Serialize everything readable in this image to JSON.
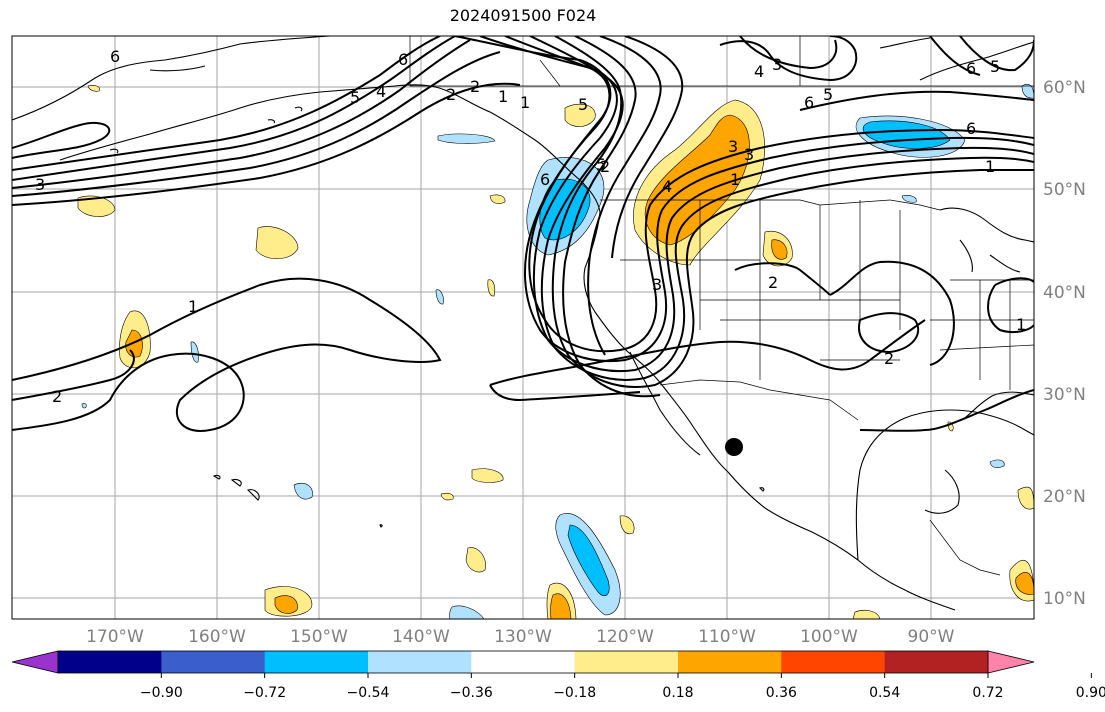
{
  "title": "2024091500 F024",
  "map": {
    "lat_labels": [
      "60°N",
      "50°N",
      "40°N",
      "30°N",
      "20°N",
      "10°N"
    ],
    "lon_labels": [
      "170°W",
      "160°W",
      "150°W",
      "140°W",
      "130°W",
      "120°W",
      "110°W",
      "100°W",
      "90°W"
    ],
    "contour_labels": [
      "6",
      "5",
      "4",
      "3",
      "2",
      "1",
      "1",
      "2",
      "3",
      "4",
      "5",
      "6",
      "1",
      "1",
      "2",
      "2",
      "3",
      "6",
      "5",
      "6",
      "1",
      "2",
      "3",
      "2",
      "1",
      "3",
      "4",
      "5",
      "6",
      "6",
      "5"
    ],
    "marker": "black-dot"
  },
  "colorbar": {
    "colors": [
      "#9a32cd",
      "#00008b",
      "#3a5fcd",
      "#00bfff",
      "#b0e2ff",
      "#ffffff",
      "#ffec8b",
      "#ffa500",
      "#ff4500",
      "#b22222",
      "#ff83aa"
    ],
    "ticks": [
      "−0.90",
      "−0.72",
      "−0.54",
      "−0.36",
      "−0.18",
      "0.18",
      "0.36",
      "0.54",
      "0.72",
      "0.90"
    ]
  }
}
